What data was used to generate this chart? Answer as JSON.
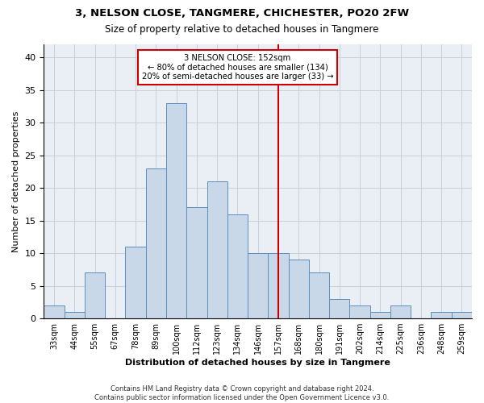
{
  "title1": "3, NELSON CLOSE, TANGMERE, CHICHESTER, PO20 2FW",
  "title2": "Size of property relative to detached houses in Tangmere",
  "xlabel": "Distribution of detached houses by size in Tangmere",
  "ylabel": "Number of detached properties",
  "footnote": "Contains HM Land Registry data © Crown copyright and database right 2024.\nContains public sector information licensed under the Open Government Licence v3.0.",
  "bin_labels": [
    "33sqm",
    "44sqm",
    "55sqm",
    "67sqm",
    "78sqm",
    "89sqm",
    "100sqm",
    "112sqm",
    "123sqm",
    "134sqm",
    "146sqm",
    "157sqm",
    "168sqm",
    "180sqm",
    "191sqm",
    "202sqm",
    "214sqm",
    "225sqm",
    "236sqm",
    "248sqm",
    "259sqm"
  ],
  "bar_heights": [
    2,
    1,
    7,
    0,
    11,
    23,
    33,
    17,
    21,
    16,
    10,
    10,
    9,
    7,
    3,
    2,
    1,
    2,
    0,
    1,
    1
  ],
  "bar_color": "#c8d8e8",
  "bar_edge_color": "#5b8fbe",
  "vline_x": 11.0,
  "vline_color": "#cc0000",
  "annotation_text_line1": "3 NELSON CLOSE: 152sqm",
  "annotation_text_line2": "← 80% of detached houses are smaller (134)",
  "annotation_text_line3": "20% of semi-detached houses are larger (33) →",
  "annotation_box_color": "#cc0000",
  "ylim": [
    0,
    42
  ],
  "yticks": [
    0,
    5,
    10,
    15,
    20,
    25,
    30,
    35,
    40
  ],
  "grid_color": "#c8d0d8",
  "background_color": "#eaeff5"
}
